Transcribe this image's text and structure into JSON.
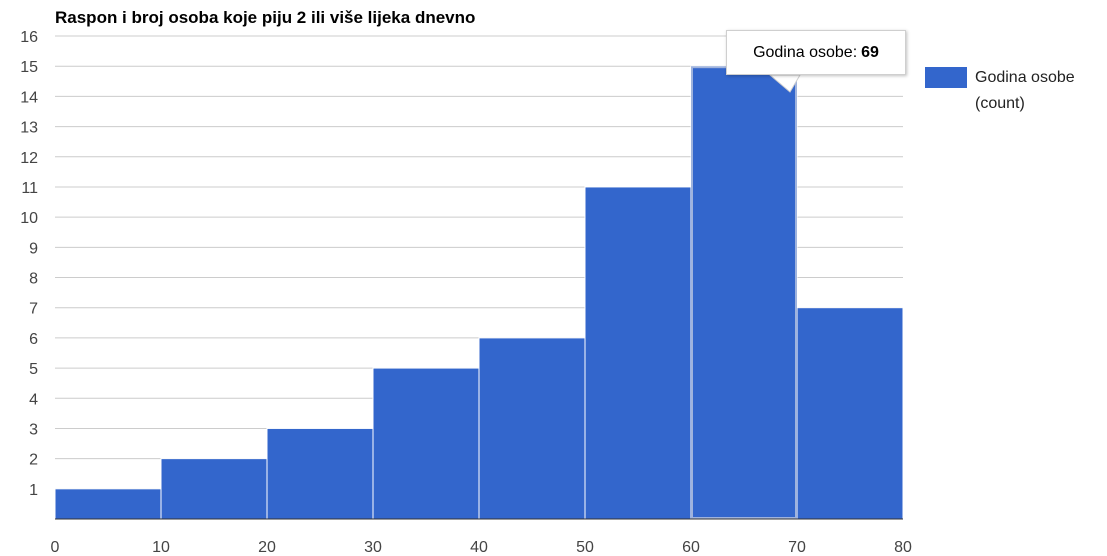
{
  "chart_data": {
    "type": "bar",
    "title": "Raspon i broj osoba koje piju 2 ili više lijeka dnevno",
    "x_ticks": [
      0,
      10,
      20,
      30,
      40,
      50,
      60,
      70,
      80
    ],
    "y_ticks": [
      1,
      2,
      3,
      4,
      5,
      6,
      7,
      8,
      9,
      10,
      11,
      12,
      13,
      14,
      15,
      16
    ],
    "bins": [
      {
        "from": 0,
        "to": 10,
        "value": 1
      },
      {
        "from": 10,
        "to": 20,
        "value": 2
      },
      {
        "from": 20,
        "to": 30,
        "value": 3
      },
      {
        "from": 30,
        "to": 40,
        "value": 5
      },
      {
        "from": 40,
        "to": 50,
        "value": 6
      },
      {
        "from": 50,
        "to": 60,
        "value": 11
      },
      {
        "from": 60,
        "to": 70,
        "value": 15
      },
      {
        "from": 70,
        "to": 80,
        "value": 7
      }
    ],
    "xlim": [
      0,
      80
    ],
    "ylim": [
      0,
      16
    ],
    "grid": true,
    "series_color": "#3366cc",
    "legend": {
      "label": "Godina osobe (count)",
      "position": "right"
    },
    "tooltip": {
      "label": "Godina osobe:",
      "value": "69"
    }
  }
}
